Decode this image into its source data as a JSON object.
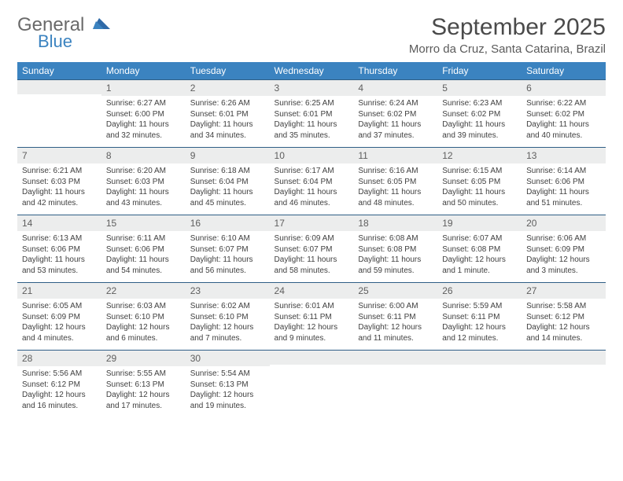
{
  "brand": {
    "name_main": "General",
    "name_sub": "Blue"
  },
  "title": "September 2025",
  "location": "Morro da Cruz, Santa Catarina, Brazil",
  "colors": {
    "header_bg": "#3b83c0",
    "header_text": "#ffffff",
    "daynum_bg": "#eceded",
    "week_border": "#2f5e86",
    "body_text": "#404040",
    "title_text": "#4a4a4a"
  },
  "day_names": [
    "Sunday",
    "Monday",
    "Tuesday",
    "Wednesday",
    "Thursday",
    "Friday",
    "Saturday"
  ],
  "weeks": [
    [
      {
        "n": "",
        "sunrise": "",
        "sunset": "",
        "daylight": ""
      },
      {
        "n": "1",
        "sunrise": "6:27 AM",
        "sunset": "6:00 PM",
        "daylight": "11 hours and 32 minutes."
      },
      {
        "n": "2",
        "sunrise": "6:26 AM",
        "sunset": "6:01 PM",
        "daylight": "11 hours and 34 minutes."
      },
      {
        "n": "3",
        "sunrise": "6:25 AM",
        "sunset": "6:01 PM",
        "daylight": "11 hours and 35 minutes."
      },
      {
        "n": "4",
        "sunrise": "6:24 AM",
        "sunset": "6:02 PM",
        "daylight": "11 hours and 37 minutes."
      },
      {
        "n": "5",
        "sunrise": "6:23 AM",
        "sunset": "6:02 PM",
        "daylight": "11 hours and 39 minutes."
      },
      {
        "n": "6",
        "sunrise": "6:22 AM",
        "sunset": "6:02 PM",
        "daylight": "11 hours and 40 minutes."
      }
    ],
    [
      {
        "n": "7",
        "sunrise": "6:21 AM",
        "sunset": "6:03 PM",
        "daylight": "11 hours and 42 minutes."
      },
      {
        "n": "8",
        "sunrise": "6:20 AM",
        "sunset": "6:03 PM",
        "daylight": "11 hours and 43 minutes."
      },
      {
        "n": "9",
        "sunrise": "6:18 AM",
        "sunset": "6:04 PM",
        "daylight": "11 hours and 45 minutes."
      },
      {
        "n": "10",
        "sunrise": "6:17 AM",
        "sunset": "6:04 PM",
        "daylight": "11 hours and 46 minutes."
      },
      {
        "n": "11",
        "sunrise": "6:16 AM",
        "sunset": "6:05 PM",
        "daylight": "11 hours and 48 minutes."
      },
      {
        "n": "12",
        "sunrise": "6:15 AM",
        "sunset": "6:05 PM",
        "daylight": "11 hours and 50 minutes."
      },
      {
        "n": "13",
        "sunrise": "6:14 AM",
        "sunset": "6:06 PM",
        "daylight": "11 hours and 51 minutes."
      }
    ],
    [
      {
        "n": "14",
        "sunrise": "6:13 AM",
        "sunset": "6:06 PM",
        "daylight": "11 hours and 53 minutes."
      },
      {
        "n": "15",
        "sunrise": "6:11 AM",
        "sunset": "6:06 PM",
        "daylight": "11 hours and 54 minutes."
      },
      {
        "n": "16",
        "sunrise": "6:10 AM",
        "sunset": "6:07 PM",
        "daylight": "11 hours and 56 minutes."
      },
      {
        "n": "17",
        "sunrise": "6:09 AM",
        "sunset": "6:07 PM",
        "daylight": "11 hours and 58 minutes."
      },
      {
        "n": "18",
        "sunrise": "6:08 AM",
        "sunset": "6:08 PM",
        "daylight": "11 hours and 59 minutes."
      },
      {
        "n": "19",
        "sunrise": "6:07 AM",
        "sunset": "6:08 PM",
        "daylight": "12 hours and 1 minute."
      },
      {
        "n": "20",
        "sunrise": "6:06 AM",
        "sunset": "6:09 PM",
        "daylight": "12 hours and 3 minutes."
      }
    ],
    [
      {
        "n": "21",
        "sunrise": "6:05 AM",
        "sunset": "6:09 PM",
        "daylight": "12 hours and 4 minutes."
      },
      {
        "n": "22",
        "sunrise": "6:03 AM",
        "sunset": "6:10 PM",
        "daylight": "12 hours and 6 minutes."
      },
      {
        "n": "23",
        "sunrise": "6:02 AM",
        "sunset": "6:10 PM",
        "daylight": "12 hours and 7 minutes."
      },
      {
        "n": "24",
        "sunrise": "6:01 AM",
        "sunset": "6:11 PM",
        "daylight": "12 hours and 9 minutes."
      },
      {
        "n": "25",
        "sunrise": "6:00 AM",
        "sunset": "6:11 PM",
        "daylight": "12 hours and 11 minutes."
      },
      {
        "n": "26",
        "sunrise": "5:59 AM",
        "sunset": "6:11 PM",
        "daylight": "12 hours and 12 minutes."
      },
      {
        "n": "27",
        "sunrise": "5:58 AM",
        "sunset": "6:12 PM",
        "daylight": "12 hours and 14 minutes."
      }
    ],
    [
      {
        "n": "28",
        "sunrise": "5:56 AM",
        "sunset": "6:12 PM",
        "daylight": "12 hours and 16 minutes."
      },
      {
        "n": "29",
        "sunrise": "5:55 AM",
        "sunset": "6:13 PM",
        "daylight": "12 hours and 17 minutes."
      },
      {
        "n": "30",
        "sunrise": "5:54 AM",
        "sunset": "6:13 PM",
        "daylight": "12 hours and 19 minutes."
      },
      {
        "n": "",
        "sunrise": "",
        "sunset": "",
        "daylight": ""
      },
      {
        "n": "",
        "sunrise": "",
        "sunset": "",
        "daylight": ""
      },
      {
        "n": "",
        "sunrise": "",
        "sunset": "",
        "daylight": ""
      },
      {
        "n": "",
        "sunrise": "",
        "sunset": "",
        "daylight": ""
      }
    ]
  ],
  "labels": {
    "sunrise": "Sunrise:",
    "sunset": "Sunset:",
    "daylight": "Daylight:"
  }
}
